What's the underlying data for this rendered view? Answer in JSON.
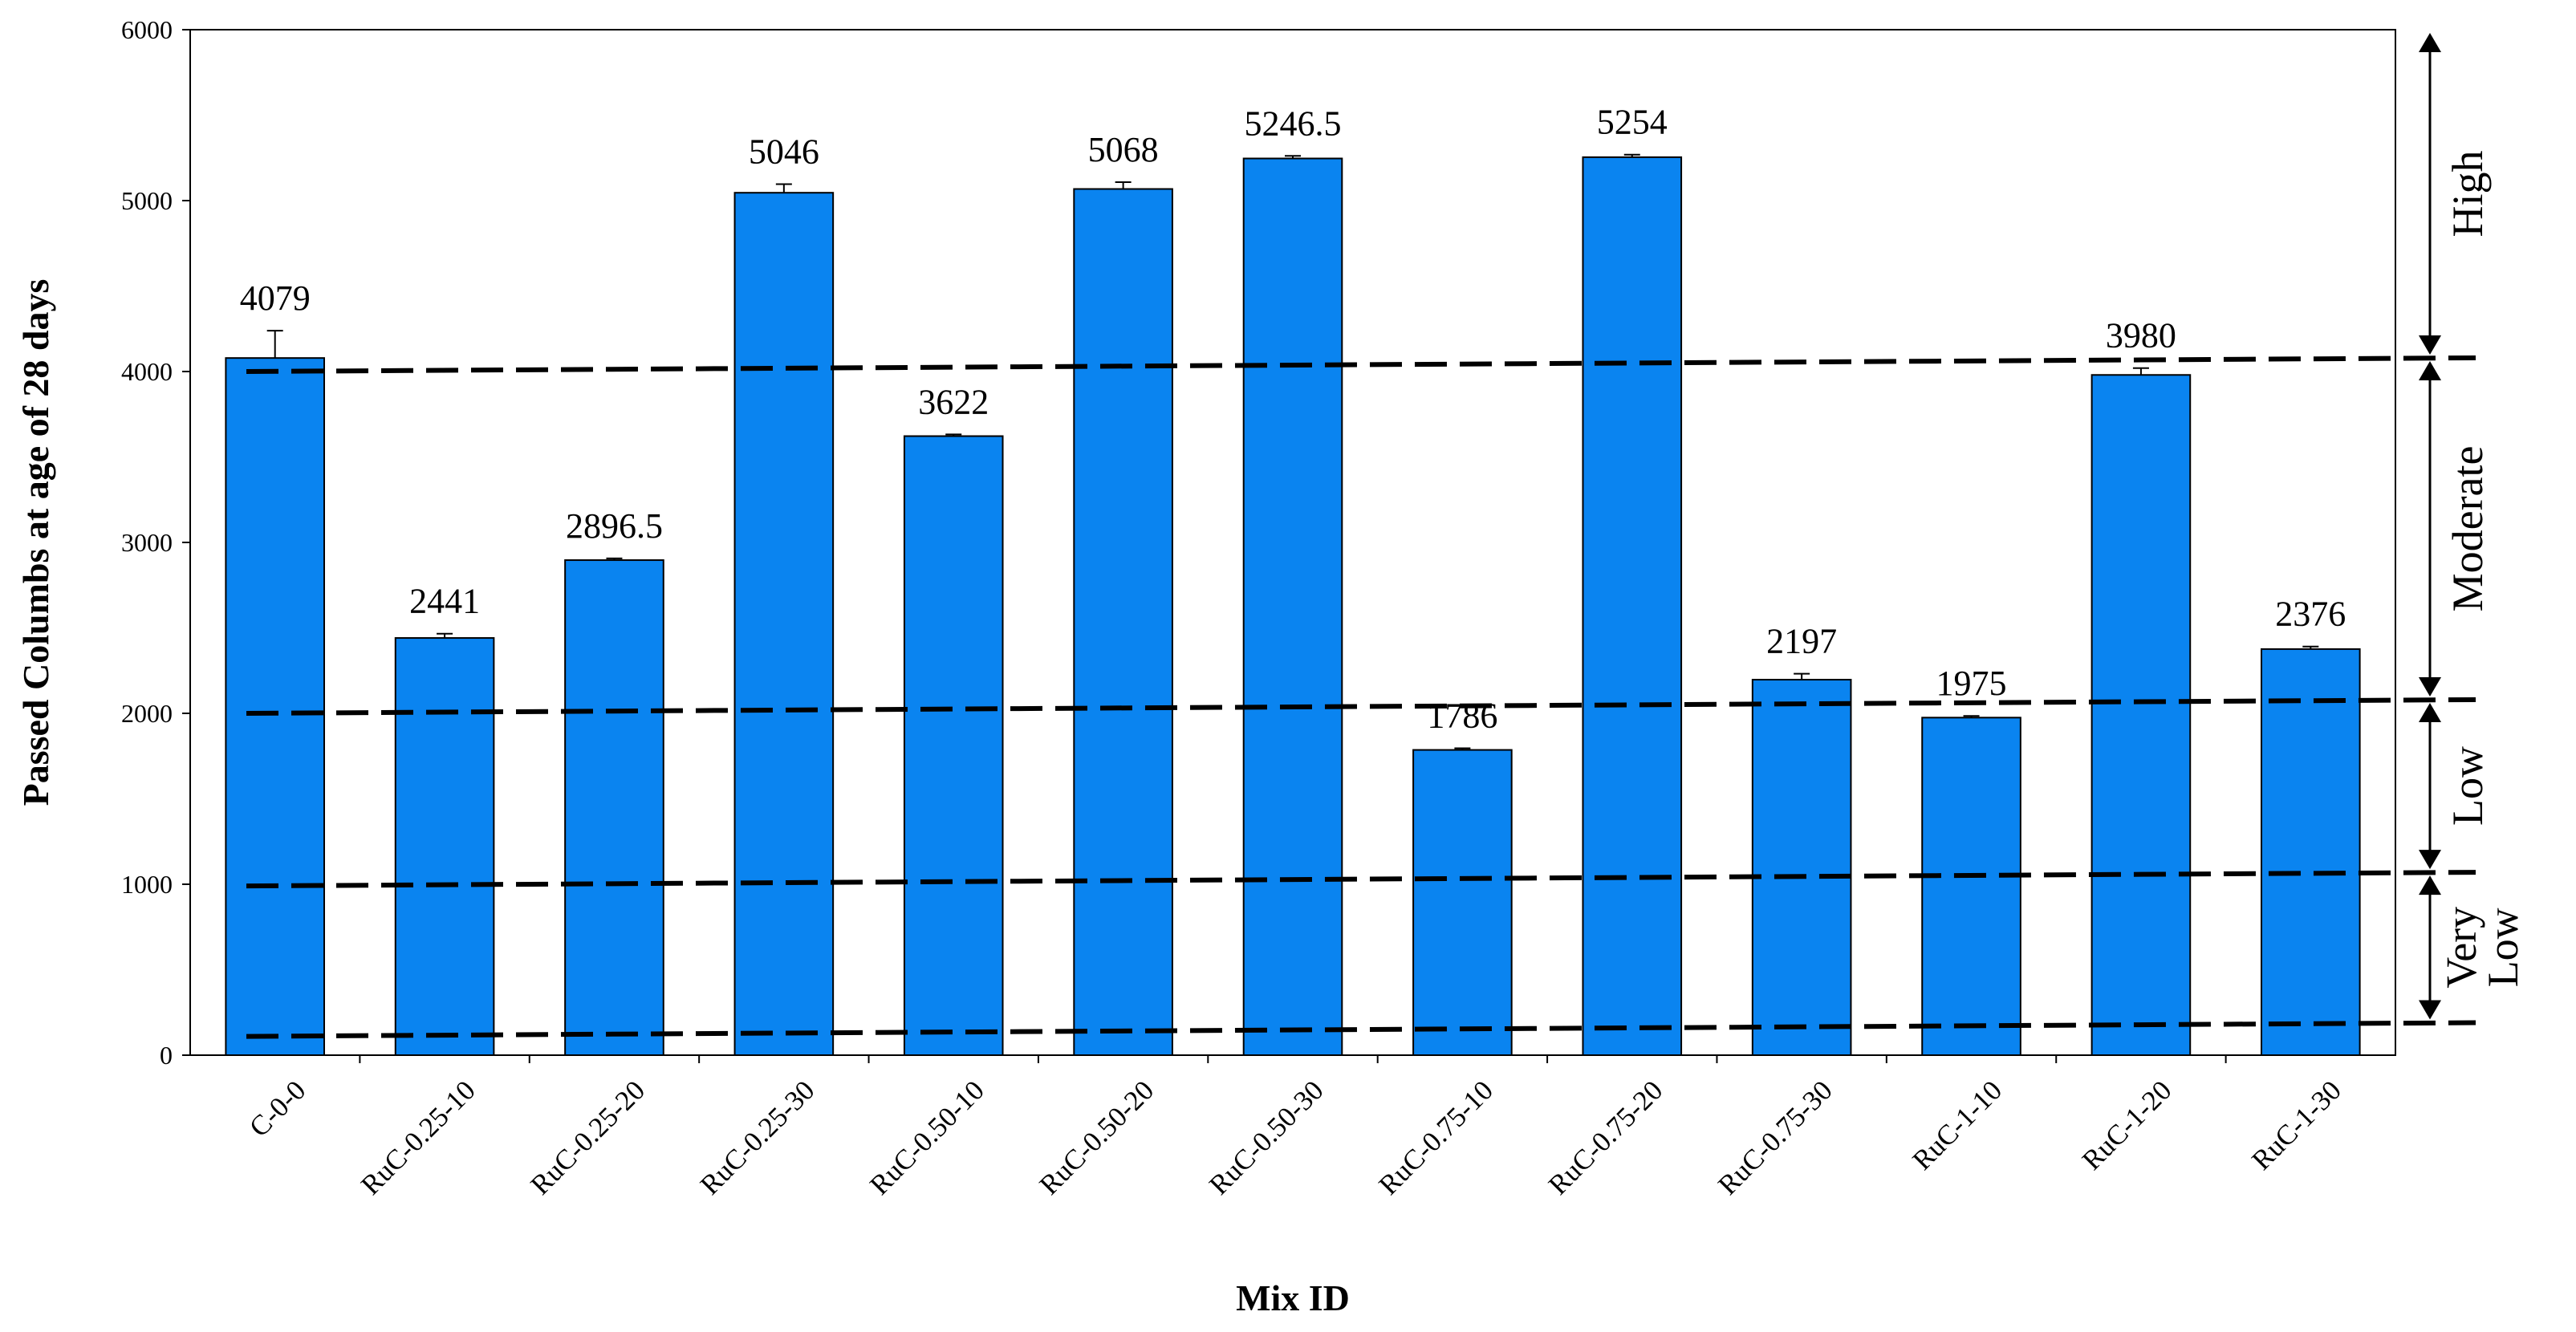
{
  "chart_data": {
    "type": "bar",
    "title": "",
    "xlabel": "Mix ID",
    "ylabel": "Passed Columbs at  age of 28 days",
    "ylim": [
      0,
      6000
    ],
    "yticks": [
      0,
      1000,
      2000,
      3000,
      4000,
      5000,
      6000
    ],
    "grid": false,
    "legend": "none",
    "categories": [
      "C-0-0",
      "RuC-0.25-10",
      "RuC-0.25-20",
      "RuC-0.25-30",
      "RuC-0.50-10",
      "RuC-0.50-20",
      "RuC-0.50-30",
      "RuC-0.75-10",
      "RuC-0.75-20",
      "RuC-0.75-30",
      "RuC-1-10",
      "RuC-1-20",
      "RuC-1-30"
    ],
    "values": [
      4079,
      2441,
      2896.5,
      5046,
      3622,
      5068,
      5246.5,
      1786,
      5254,
      2197,
      1975,
      3980,
      2376
    ],
    "value_labels": [
      "4079",
      "2441",
      "2896.5",
      "5046",
      "3622",
      "5068",
      "5246.5",
      "1786",
      "5254",
      "2197",
      "1975",
      "3980",
      "2376"
    ],
    "error": [
      160,
      25,
      10,
      50,
      10,
      40,
      15,
      10,
      15,
      35,
      10,
      40,
      15
    ],
    "bar_color": "#0a84f0",
    "bar_edge": "#000000",
    "reference_lines": [
      {
        "start": 4000,
        "end": 4080
      },
      {
        "start": 2000,
        "end": 2080
      },
      {
        "start": 990,
        "end": 1070
      },
      {
        "start": 110,
        "end": 190
      }
    ],
    "bands": [
      {
        "label": "High",
        "from": 4080,
        "to": 6000
      },
      {
        "label": "Moderate",
        "from": 2080,
        "to": 4080
      },
      {
        "label": "Low",
        "from": 1070,
        "to": 2080
      },
      {
        "label": "Very\nLow",
        "from": 190,
        "to": 1070
      }
    ]
  }
}
